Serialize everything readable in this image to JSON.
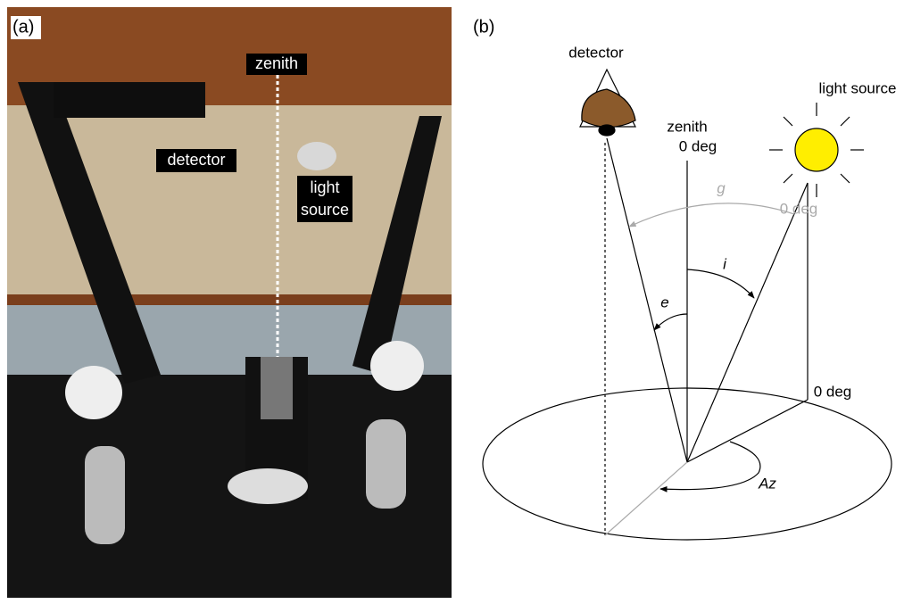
{
  "panel_a": {
    "label": "(a)",
    "zenith": "zenith",
    "detector": "detector",
    "light_source": [
      "light",
      "source"
    ]
  },
  "panel_b": {
    "label": "(b)",
    "detector": "detector",
    "light_source": "light source",
    "zenith": "zenith",
    "zenith_angle": "0 deg",
    "g": "g",
    "g_angle": "0 deg",
    "i": "i",
    "e": "e",
    "az_angle": "0 deg",
    "az": "Az"
  }
}
